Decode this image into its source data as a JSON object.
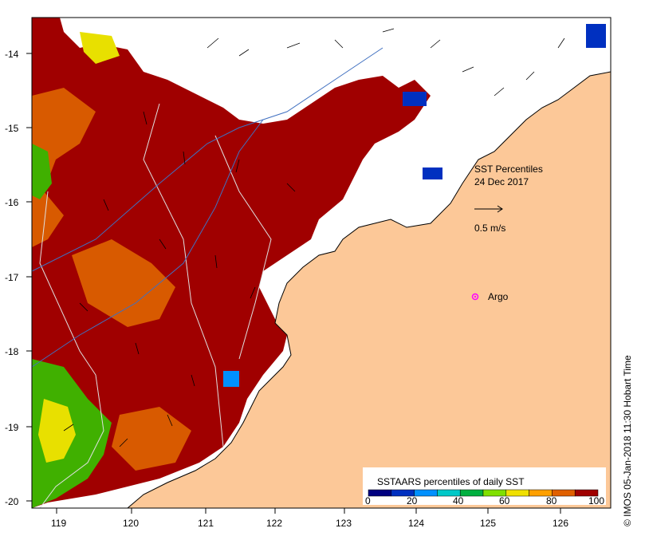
{
  "map": {
    "title_line1": "SST Percentiles",
    "title_line2": "24 Dec 2017",
    "current_scale_label": "0.5 m/s",
    "argo_label": "Argo",
    "credit": "© IMOS 05-Jan-2018 11:30 Hobart Time",
    "x_ticks": [
      "119",
      "120",
      "121",
      "122",
      "123",
      "124",
      "125",
      "126"
    ],
    "y_ticks": [
      "-14",
      "-15",
      "-16",
      "-17",
      "-18",
      "-19",
      "-20"
    ],
    "colorbar": {
      "title": "SSTAARS percentiles of daily SST",
      "labels": [
        "0",
        "20",
        "40",
        "60",
        "80",
        "100"
      ],
      "colors": [
        "#000080",
        "#0030c0",
        "#0090ff",
        "#00c8c8",
        "#00b040",
        "#80e000",
        "#f0e000",
        "#ffa000",
        "#e06000",
        "#a00000"
      ]
    },
    "colors": {
      "land": "#fcc898",
      "ocean_warm": "#a00000",
      "ocean_mid": "#d85a00",
      "no_data": "#ffffff",
      "argo": "#ff00ff"
    }
  }
}
